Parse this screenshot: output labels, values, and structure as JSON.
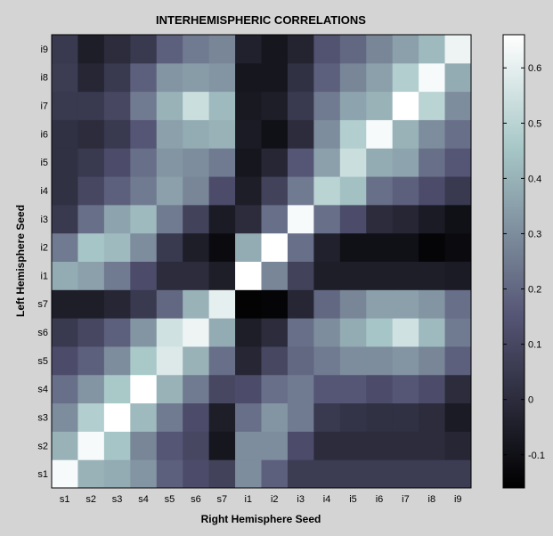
{
  "chart_data": {
    "type": "heatmap",
    "title": "INTERHEMISPHERIC CORRELATIONS",
    "xlabel": "Right Hemisphere Seed",
    "ylabel": "Left Hemisphere Seed",
    "x_categories": [
      "s1",
      "s2",
      "s3",
      "s4",
      "s5",
      "s6",
      "s7",
      "i1",
      "i2",
      "i3",
      "i4",
      "i5",
      "i6",
      "i7",
      "i8",
      "i9"
    ],
    "y_categories": [
      "s1",
      "s2",
      "s3",
      "s4",
      "s5",
      "s6",
      "s7",
      "i1",
      "i2",
      "i3",
      "i4",
      "i5",
      "i6",
      "i7",
      "i8",
      "i9"
    ],
    "colorbar": {
      "range": [
        -0.16,
        0.66
      ],
      "ticks": [
        -0.1,
        0,
        0.1,
        0.2,
        0.3,
        0.4,
        0.5,
        0.6
      ],
      "tick_labels": [
        "-0.1",
        "0",
        "0.1",
        "0.2",
        "0.3",
        "0.4",
        "0.5",
        "0.6"
      ],
      "colormap": "bone",
      "colors": [
        "#000000",
        "#545474",
        "#a7c7c7",
        "#ffffff"
      ]
    },
    "values": [
      [
        0.64,
        0.4,
        0.38,
        0.32,
        0.18,
        0.12,
        0.08,
        0.3,
        0.18,
        0.06,
        0.06,
        0.06,
        0.06,
        0.06,
        0.06,
        0.06
      ],
      [
        0.4,
        0.64,
        0.45,
        0.28,
        0.15,
        0.1,
        -0.08,
        0.3,
        0.3,
        0.12,
        0.0,
        0.0,
        0.0,
        0.0,
        0.0,
        -0.02
      ],
      [
        0.3,
        0.48,
        0.66,
        0.42,
        0.25,
        0.12,
        -0.05,
        0.22,
        0.32,
        0.25,
        0.05,
        0.03,
        0.02,
        0.02,
        0.0,
        -0.06
      ],
      [
        0.22,
        0.32,
        0.46,
        0.66,
        0.4,
        0.25,
        0.1,
        0.12,
        0.22,
        0.25,
        0.15,
        0.15,
        0.12,
        0.15,
        0.12,
        0.0
      ],
      [
        0.12,
        0.18,
        0.3,
        0.46,
        0.58,
        0.4,
        0.22,
        -0.02,
        0.1,
        0.2,
        0.25,
        0.3,
        0.3,
        0.32,
        0.28,
        0.18
      ],
      [
        0.05,
        0.1,
        0.18,
        0.32,
        0.55,
        0.62,
        0.38,
        -0.05,
        0.0,
        0.22,
        0.3,
        0.38,
        0.45,
        0.55,
        0.42,
        0.25
      ],
      [
        -0.05,
        -0.05,
        -0.02,
        0.05,
        0.2,
        0.4,
        0.6,
        -0.15,
        -0.14,
        -0.02,
        0.2,
        0.28,
        0.35,
        0.35,
        0.32,
        0.22
      ],
      [
        0.38,
        0.35,
        0.25,
        0.12,
        0.0,
        0.0,
        -0.05,
        0.66,
        0.28,
        0.08,
        -0.05,
        -0.05,
        -0.05,
        -0.05,
        -0.05,
        -0.06
      ],
      [
        0.25,
        0.45,
        0.42,
        0.3,
        0.05,
        -0.05,
        -0.12,
        0.38,
        0.66,
        0.22,
        -0.04,
        -0.1,
        -0.1,
        -0.1,
        -0.14,
        -0.12
      ],
      [
        0.05,
        0.22,
        0.36,
        0.42,
        0.25,
        0.08,
        -0.06,
        0.0,
        0.22,
        0.64,
        0.22,
        0.12,
        0.0,
        -0.02,
        -0.06,
        -0.1
      ],
      [
        0.02,
        0.1,
        0.18,
        0.25,
        0.35,
        0.28,
        0.12,
        -0.05,
        0.08,
        0.25,
        0.5,
        0.44,
        0.22,
        0.18,
        0.12,
        0.05
      ],
      [
        0.02,
        0.05,
        0.12,
        0.22,
        0.32,
        0.3,
        0.25,
        -0.08,
        -0.02,
        0.15,
        0.35,
        0.54,
        0.38,
        0.36,
        0.22,
        0.15
      ],
      [
        0.02,
        0.0,
        0.05,
        0.15,
        0.35,
        0.38,
        0.4,
        -0.06,
        -0.1,
        0.0,
        0.3,
        0.48,
        0.64,
        0.4,
        0.3,
        0.22
      ],
      [
        0.05,
        0.05,
        0.1,
        0.25,
        0.4,
        0.54,
        0.42,
        -0.07,
        -0.05,
        0.05,
        0.25,
        0.36,
        0.4,
        0.66,
        0.5,
        0.3
      ],
      [
        0.06,
        -0.02,
        0.05,
        0.18,
        0.32,
        0.34,
        0.32,
        -0.08,
        -0.08,
        0.02,
        0.18,
        0.28,
        0.35,
        0.48,
        0.64,
        0.38
      ],
      [
        0.05,
        -0.05,
        0.0,
        0.05,
        0.18,
        0.25,
        0.28,
        -0.04,
        -0.08,
        -0.03,
        0.14,
        0.2,
        0.28,
        0.35,
        0.42,
        0.62
      ]
    ]
  }
}
